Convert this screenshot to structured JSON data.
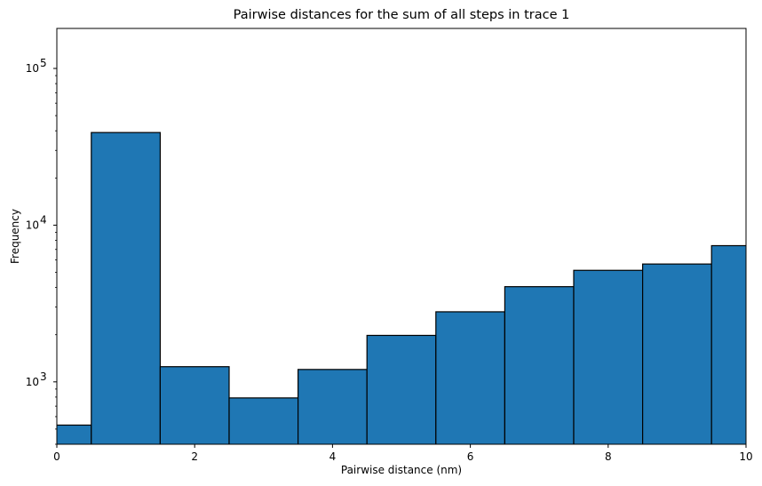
{
  "chart_data": {
    "type": "bar",
    "title": "Pairwise distances for the sum of all steps in trace 1",
    "xlabel": "Pairwise distance (nm)",
    "ylabel": "Frequency",
    "xlim": [
      0,
      10
    ],
    "ylim": [
      400,
      180000
    ],
    "yscale": "log",
    "grid": false,
    "bar_color": "#1f77b4",
    "edge_color": "#000000",
    "x_ticks": [
      {
        "value": 0,
        "label": "0"
      },
      {
        "value": 2,
        "label": "2"
      },
      {
        "value": 4,
        "label": "4"
      },
      {
        "value": 6,
        "label": "6"
      },
      {
        "value": 8,
        "label": "8"
      },
      {
        "value": 10,
        "label": "10"
      }
    ],
    "y_ticks": [
      {
        "value": 1000,
        "base": "10",
        "exp": "3"
      },
      {
        "value": 10000,
        "base": "10",
        "exp": "4"
      },
      {
        "value": 100000,
        "base": "10",
        "exp": "5"
      }
    ],
    "bins": [
      {
        "start": -0.5,
        "end": 0.5,
        "value": 530
      },
      {
        "start": 0.5,
        "end": 1.5,
        "value": 39000
      },
      {
        "start": 1.5,
        "end": 2.5,
        "value": 1250
      },
      {
        "start": 2.5,
        "end": 3.5,
        "value": 790
      },
      {
        "start": 3.5,
        "end": 4.5,
        "value": 1200
      },
      {
        "start": 4.5,
        "end": 5.5,
        "value": 1980
      },
      {
        "start": 5.5,
        "end": 6.5,
        "value": 2800
      },
      {
        "start": 6.5,
        "end": 7.5,
        "value": 4050
      },
      {
        "start": 7.5,
        "end": 8.5,
        "value": 5150
      },
      {
        "start": 8.5,
        "end": 9.5,
        "value": 5650
      },
      {
        "start": 9.5,
        "end": 10.5,
        "value": 7400
      }
    ]
  }
}
